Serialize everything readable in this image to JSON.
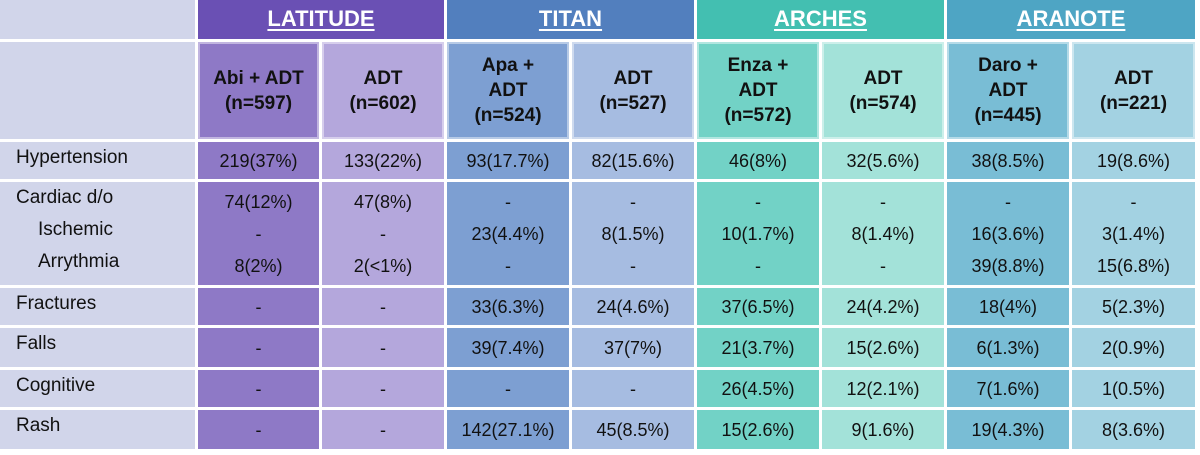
{
  "colors": {
    "latitude": [
      "#6a50b4",
      "#8e79c6",
      "#b4a7dc"
    ],
    "titan": [
      "#527fbe",
      "#7d9fd2",
      "#a6bce1"
    ],
    "arches": [
      "#43bfb1",
      "#72d2c6",
      "#a3e2d9"
    ],
    "aranote": [
      "#4ea5c4",
      "#79bdd5",
      "#a3d2e2"
    ],
    "label_bg": "#d1d5ea"
  },
  "trials": [
    {
      "key": "latitude",
      "name": "LATITUDE",
      "arms": [
        [
          "Abi + ADT",
          "(n=597)"
        ],
        [
          "ADT",
          "(n=602)"
        ]
      ]
    },
    {
      "key": "titan",
      "name": "TITAN",
      "arms": [
        [
          "Apa +",
          "ADT",
          "(n=524)"
        ],
        [
          "ADT",
          "(n=527)"
        ]
      ]
    },
    {
      "key": "arches",
      "name": "ARCHES",
      "arms": [
        [
          "Enza +",
          "ADT",
          "(n=572)"
        ],
        [
          "ADT",
          "(n=574)"
        ]
      ]
    },
    {
      "key": "aranote",
      "name": "ARANOTE",
      "arms": [
        [
          "Daro +",
          "ADT",
          "(n=445)"
        ],
        [
          "ADT",
          "(n=221)"
        ]
      ]
    }
  ],
  "rows": [
    {
      "label": [
        "Hypertension"
      ],
      "values": [
        [
          "219(37%)"
        ],
        [
          "133(22%)"
        ],
        [
          "93(17.7%)"
        ],
        [
          "82(15.6%)"
        ],
        [
          "46(8%)"
        ],
        [
          "32(5.6%)"
        ],
        [
          "38(8.5%)"
        ],
        [
          "19(8.6%)"
        ]
      ]
    },
    {
      "label": [
        "Cardiac d/o",
        "Ischemic",
        "Arrythmia"
      ],
      "values": [
        [
          "74(12%)",
          "-",
          "8(2%)"
        ],
        [
          "47(8%)",
          "-",
          "2(<1%)"
        ],
        [
          "-",
          "23(4.4%)",
          "-"
        ],
        [
          "-",
          "8(1.5%)",
          "-"
        ],
        [
          "-",
          "10(1.7%)",
          "-"
        ],
        [
          "-",
          "8(1.4%)",
          "-"
        ],
        [
          "-",
          "16(3.6%)",
          "39(8.8%)"
        ],
        [
          "-",
          "3(1.4%)",
          "15(6.8%)"
        ]
      ]
    },
    {
      "label": [
        "Fractures"
      ],
      "values": [
        [
          "-"
        ],
        [
          "-"
        ],
        [
          "33(6.3%)"
        ],
        [
          "24(4.6%)"
        ],
        [
          "37(6.5%)"
        ],
        [
          "24(4.2%)"
        ],
        [
          "18(4%)"
        ],
        [
          "5(2.3%)"
        ]
      ]
    },
    {
      "label": [
        "Falls"
      ],
      "values": [
        [
          "-"
        ],
        [
          "-"
        ],
        [
          "39(7.4%)"
        ],
        [
          "37(7%)"
        ],
        [
          "21(3.7%)"
        ],
        [
          "15(2.6%)"
        ],
        [
          "6(1.3%)"
        ],
        [
          "2(0.9%)"
        ]
      ]
    },
    {
      "label": [
        "Cognitive"
      ],
      "values": [
        [
          "-"
        ],
        [
          "-"
        ],
        [
          "-"
        ],
        [
          "-"
        ],
        [
          "26(4.5%)"
        ],
        [
          "12(2.1%)"
        ],
        [
          "7(1.6%)"
        ],
        [
          "1(0.5%)"
        ]
      ]
    },
    {
      "label": [
        "Rash"
      ],
      "values": [
        [
          "-"
        ],
        [
          "-"
        ],
        [
          "142(27.1%)"
        ],
        [
          "45(8.5%)"
        ],
        [
          "15(2.6%)"
        ],
        [
          "9(1.6%)"
        ],
        [
          "19(4.3%)"
        ],
        [
          "8(3.6%)"
        ]
      ]
    }
  ]
}
